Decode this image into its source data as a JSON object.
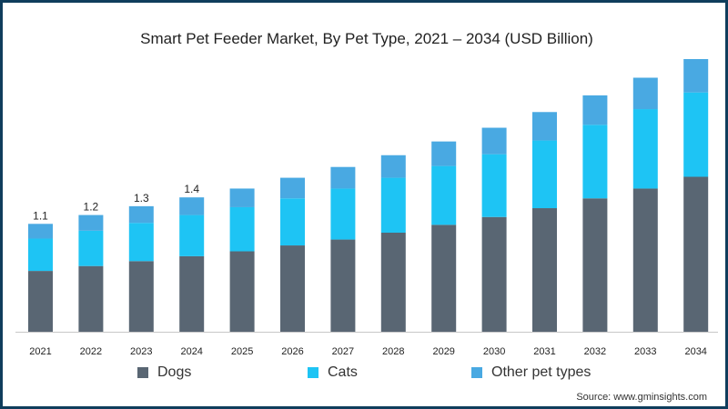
{
  "chart_data": {
    "type": "bar",
    "stacked": true,
    "title": "Smart Pet Feeder Market, By Pet Type, 2021 – 2034 (USD Billion)",
    "xlabel": "",
    "ylabel": "",
    "categories": [
      "2021",
      "2022",
      "2023",
      "2024",
      "2025",
      "2026",
      "2027",
      "2028",
      "2029",
      "2030",
      "2031",
      "2032",
      "2033",
      "2034"
    ],
    "series": [
      {
        "name": "Dogs",
        "color": "#596673",
        "values": [
          0.62,
          0.67,
          0.72,
          0.77,
          0.82,
          0.88,
          0.94,
          1.01,
          1.09,
          1.17,
          1.26,
          1.36,
          1.46,
          1.58
        ]
      },
      {
        "name": "Cats",
        "color": "#1ec4f4",
        "values": [
          0.33,
          0.36,
          0.39,
          0.42,
          0.45,
          0.48,
          0.52,
          0.56,
          0.6,
          0.64,
          0.69,
          0.75,
          0.81,
          0.86
        ]
      },
      {
        "name": "Other pet types",
        "color": "#49a9e2",
        "values": [
          0.15,
          0.16,
          0.17,
          0.18,
          0.19,
          0.21,
          0.22,
          0.23,
          0.25,
          0.27,
          0.29,
          0.3,
          0.32,
          0.34
        ]
      }
    ],
    "data_labels": [
      "1.1",
      "1.2",
      "1.3",
      "1.4",
      "",
      "",
      "",
      "",
      "",
      "",
      "",
      "",
      "",
      ""
    ],
    "ylim": [
      0,
      2.78
    ],
    "grid": false,
    "legend_position": "bottom"
  },
  "source_text": "Source: www.gminsights.com"
}
